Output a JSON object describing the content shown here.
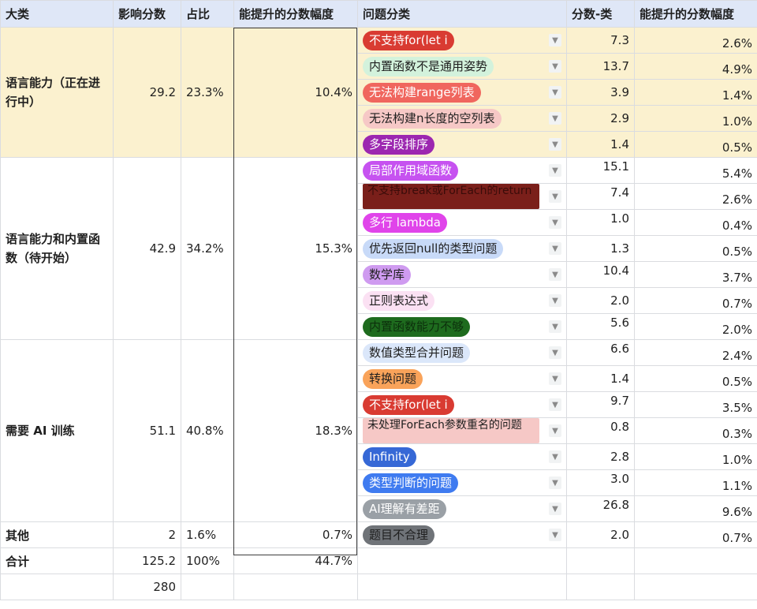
{
  "headers": {
    "category": "大类",
    "impact": "影响分数",
    "ratio": "占比",
    "uplift": "能提升的分数幅度",
    "issue": "问题分类",
    "score": "分数-类",
    "uplift2": "能提升的分数幅度"
  },
  "groups": {
    "g1": {
      "name": "语言能力（正在进行中）",
      "impact": "29.2",
      "ratio": "23.3%",
      "uplift": "10.4%"
    },
    "g2": {
      "name": "语言能力和内置函数（待开始）",
      "impact": "42.9",
      "ratio": "34.2%",
      "uplift": "15.3%"
    },
    "g3": {
      "name": "需要 AI 训练",
      "impact": "51.1",
      "ratio": "40.8%",
      "uplift": "18.3%"
    },
    "g4": {
      "name": "其他",
      "impact": "2",
      "ratio": "1.6%",
      "uplift": "0.7%"
    }
  },
  "rows": [
    {
      "issue": "不支持for(let i",
      "score": "7.3",
      "uplift": "2.6%",
      "chip_bg": "#d93b32",
      "chip_fg": "#ffffff"
    },
    {
      "issue": "内置函数不是通用姿势",
      "score": "13.7",
      "uplift": "4.9%",
      "chip_bg": "#d3f2dc",
      "chip_fg": "#1f1f1f"
    },
    {
      "issue": "无法构建range列表",
      "score": "3.9",
      "uplift": "1.4%",
      "chip_bg": "#f0665e",
      "chip_fg": "#ffffff"
    },
    {
      "issue": "无法构建n长度的空列表",
      "score": "2.9",
      "uplift": "1.0%",
      "chip_bg": "#f6c8c6",
      "chip_fg": "#1f1f1f"
    },
    {
      "issue": "多字段排序",
      "score": "1.4",
      "uplift": "0.5%",
      "chip_bg": "#9c27b0",
      "chip_fg": "#ffffff"
    },
    {
      "issue": "局部作用域函数",
      "score": "15.1",
      "uplift": "5.4%",
      "chip_bg": "#c652f0",
      "chip_fg": "#ffffff"
    },
    {
      "issue": "不支持break或ForEach的return",
      "score": "7.4",
      "uplift": "2.6%",
      "chip_bg": "#7a1f1a",
      "chip_fg": "#3a0c09",
      "rect": true
    },
    {
      "issue": "多行 lambda",
      "score": "1.0",
      "uplift": "0.4%",
      "chip_bg": "#e044ea",
      "chip_fg": "#ffffff"
    },
    {
      "issue": "优先返回null的类型问题",
      "score": "1.3",
      "uplift": "0.5%",
      "chip_bg": "#c8daf8",
      "chip_fg": "#1f1f1f"
    },
    {
      "issue": "数学库",
      "score": "10.4",
      "uplift": "3.7%",
      "chip_bg": "#cf9bf0",
      "chip_fg": "#1f1f1f"
    },
    {
      "issue": "正则表达式",
      "score": "2.0",
      "uplift": "0.7%",
      "chip_bg": "#fbe1f3",
      "chip_fg": "#1f1f1f"
    },
    {
      "issue": "内置函数能力不够",
      "score": "5.6",
      "uplift": "2.0%",
      "chip_bg": "#1e6b1e",
      "chip_fg": "#0c300c"
    },
    {
      "issue": "数值类型合并问题",
      "score": "6.6",
      "uplift": "2.4%",
      "chip_bg": "#dbe7fa",
      "chip_fg": "#1f1f1f"
    },
    {
      "issue": "转换问题",
      "score": "1.4",
      "uplift": "0.5%",
      "chip_bg": "#f9a35a",
      "chip_fg": "#1f1f1f"
    },
    {
      "issue": "不支持for(let i",
      "score": "9.7",
      "uplift": "3.5%",
      "chip_bg": "#d93b32",
      "chip_fg": "#ffffff"
    },
    {
      "issue": "未处理ForEach参数重名的问题",
      "score": "0.8",
      "uplift": "0.3%",
      "chip_bg": "#f6c8c6",
      "chip_fg": "#1f1f1f",
      "rect": true
    },
    {
      "issue": "Infinity",
      "score": "2.8",
      "uplift": "1.0%",
      "chip_bg": "#3668d6",
      "chip_fg": "#ffffff"
    },
    {
      "issue": "类型判断的问题",
      "score": "3.0",
      "uplift": "1.1%",
      "chip_bg": "#3f7bf0",
      "chip_fg": "#ffffff"
    },
    {
      "issue": "AI理解有差距",
      "score": "26.8",
      "uplift": "9.6%",
      "chip_bg": "#9aa0a6",
      "chip_fg": "#ffffff"
    },
    {
      "issue": "题目不合理",
      "score": "2.0",
      "uplift": "0.7%",
      "chip_bg": "#6f7378",
      "chip_fg": "#1f1f1f"
    }
  ],
  "total": {
    "label": "合计",
    "impact": "125.2",
    "ratio": "100%",
    "uplift": "44.7%"
  },
  "extra": {
    "impact": "280"
  },
  "icons": {
    "dropdown": "chevron-down-icon"
  }
}
